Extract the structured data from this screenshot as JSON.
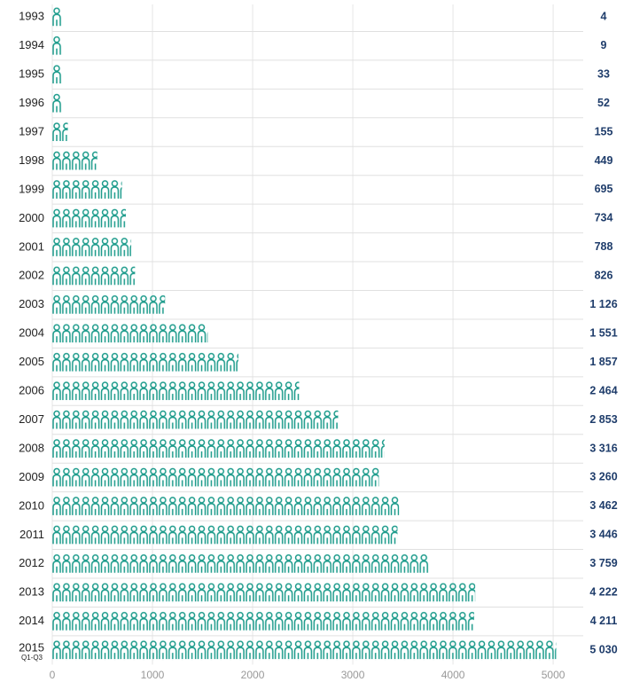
{
  "chart_data": {
    "type": "bar",
    "orientation": "horizontal",
    "categories": [
      "1993",
      "1994",
      "1995",
      "1996",
      "1997",
      "1998",
      "1999",
      "2000",
      "2001",
      "2002",
      "2003",
      "2004",
      "2005",
      "2006",
      "2007",
      "2008",
      "2009",
      "2010",
      "2011",
      "2012",
      "2013",
      "2014",
      "2015"
    ],
    "last_category_note": "Q1-Q3",
    "values": [
      4,
      9,
      33,
      52,
      155,
      449,
      695,
      734,
      788,
      826,
      1126,
      1551,
      1857,
      2464,
      2853,
      3316,
      3260,
      3462,
      3446,
      3759,
      4222,
      4211,
      5030
    ],
    "value_labels": [
      "4",
      "9",
      "33",
      "52",
      "155",
      "449",
      "695",
      "734",
      "788",
      "826",
      "1 126",
      "1 551",
      "1 857",
      "2 464",
      "2 853",
      "3 316",
      "3 260",
      "3 462",
      "3 446",
      "3 759",
      "4 222",
      "4 211",
      "5 030"
    ],
    "color": "#1a9a8a",
    "xlim": [
      0,
      5300
    ],
    "xticks": [
      0,
      1000,
      2000,
      3000,
      4000,
      5000
    ],
    "grid": true
  }
}
